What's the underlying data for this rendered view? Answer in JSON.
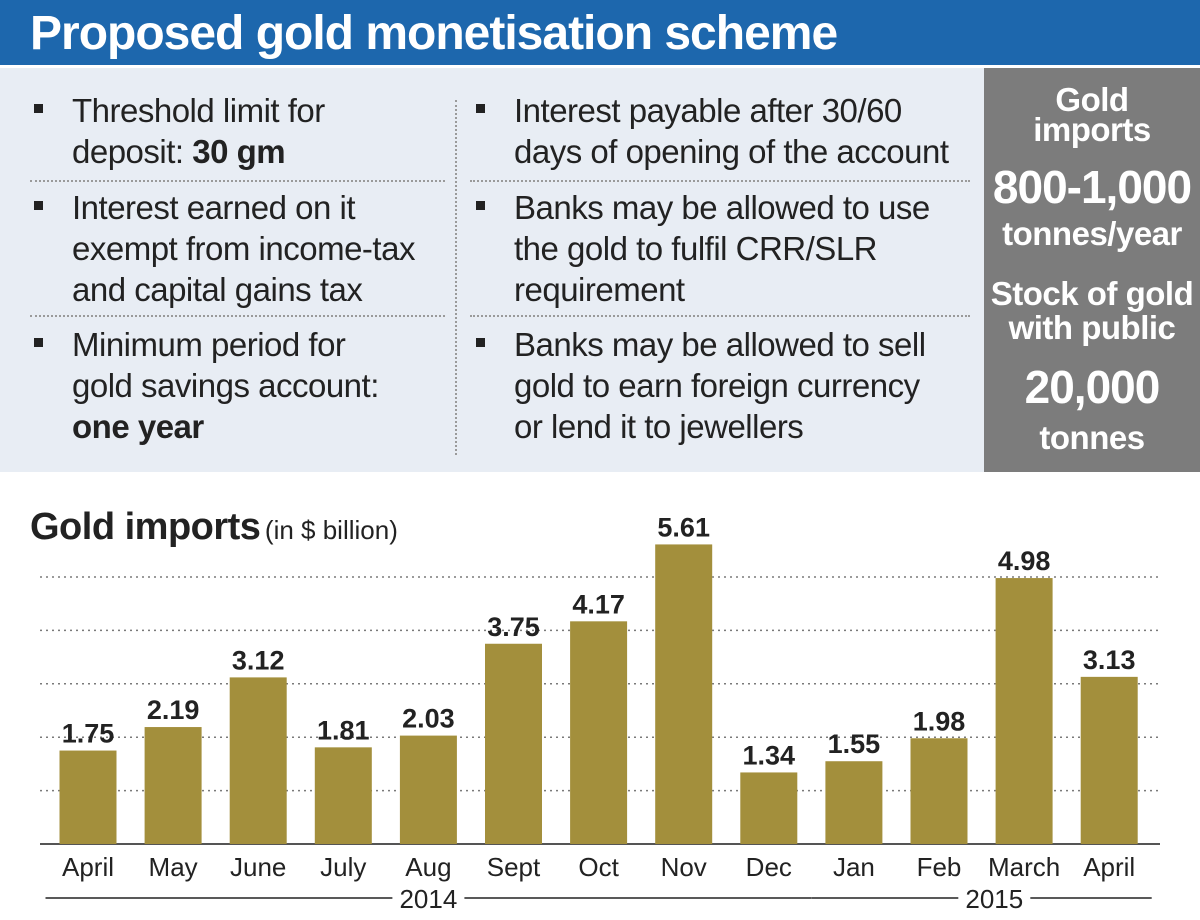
{
  "header": {
    "title": "Proposed gold monetisation scheme"
  },
  "bullets_left": [
    {
      "lines": [
        "Threshold limit for"
      ],
      "lead": "deposit: ",
      "bold": "30 gm"
    },
    {
      "lines": [
        "Interest earned on it",
        "exempt from income-tax",
        "and capital gains tax"
      ]
    },
    {
      "lines": [
        "Minimum period for",
        "gold savings account:"
      ],
      "bold": "one year"
    }
  ],
  "bullets_right": [
    {
      "lines": [
        "Interest payable after 30/60",
        "days of opening of the account"
      ]
    },
    {
      "lines": [
        "Banks may be allowed to use",
        "the gold to fulfil CRR/SLR",
        "requirement"
      ]
    },
    {
      "lines": [
        "Banks may be allowed to sell",
        "gold to earn foreign currency",
        "or lend it to jewellers"
      ]
    }
  ],
  "stats": {
    "imports_label_1": "Gold",
    "imports_label_2": "imports",
    "imports_value": "800-1,000",
    "imports_unit": "tonnes/year",
    "stock_label_1": "Stock of gold",
    "stock_label_2": "with public",
    "stock_value": "20,000",
    "stock_unit": "tonnes"
  },
  "colors": {
    "title_bar": "#1d67ad",
    "info_bg": "#e8edf4",
    "stats_bg": "#7c7c7c",
    "bar": "#a38f3c"
  },
  "chart_data": {
    "type": "bar",
    "title": "Gold imports",
    "unit_label": "(in $ billion)",
    "categories": [
      "April",
      "May",
      "June",
      "July",
      "Aug",
      "Sept",
      "Oct",
      "Nov",
      "Dec",
      "Jan",
      "Feb",
      "March",
      "April"
    ],
    "values": [
      1.75,
      2.19,
      3.12,
      1.81,
      2.03,
      3.75,
      4.17,
      5.61,
      1.34,
      1.55,
      1.98,
      4.98,
      3.13
    ],
    "value_labels": [
      "1.75",
      "2.19",
      "3.12",
      "1.81",
      "2.03",
      "3.75",
      "4.17",
      "5.61",
      "1.34",
      "1.55",
      "1.98",
      "4.98",
      "3.13"
    ],
    "year_groups": [
      {
        "label": "2014",
        "from": 0,
        "to": 8
      },
      {
        "label": "2015",
        "from": 9,
        "to": 12
      }
    ],
    "ylim": [
      0,
      6
    ],
    "grid": true
  }
}
